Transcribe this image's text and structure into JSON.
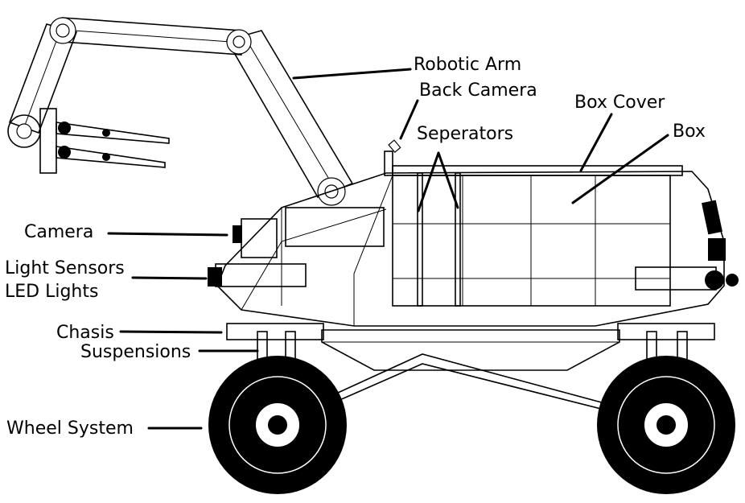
{
  "labels": {
    "robotic_arm": "Robotic Arm",
    "back_camera": "Back Camera",
    "box_cover": "Box Cover",
    "seperators": "Seperators",
    "box": "Box",
    "camera": "Camera",
    "light_sensors": "Light Sensors",
    "led_lights": "LED Lights",
    "chasis": "Chasis",
    "suspensions": "Suspensions",
    "wheel_system": "Wheel System"
  }
}
